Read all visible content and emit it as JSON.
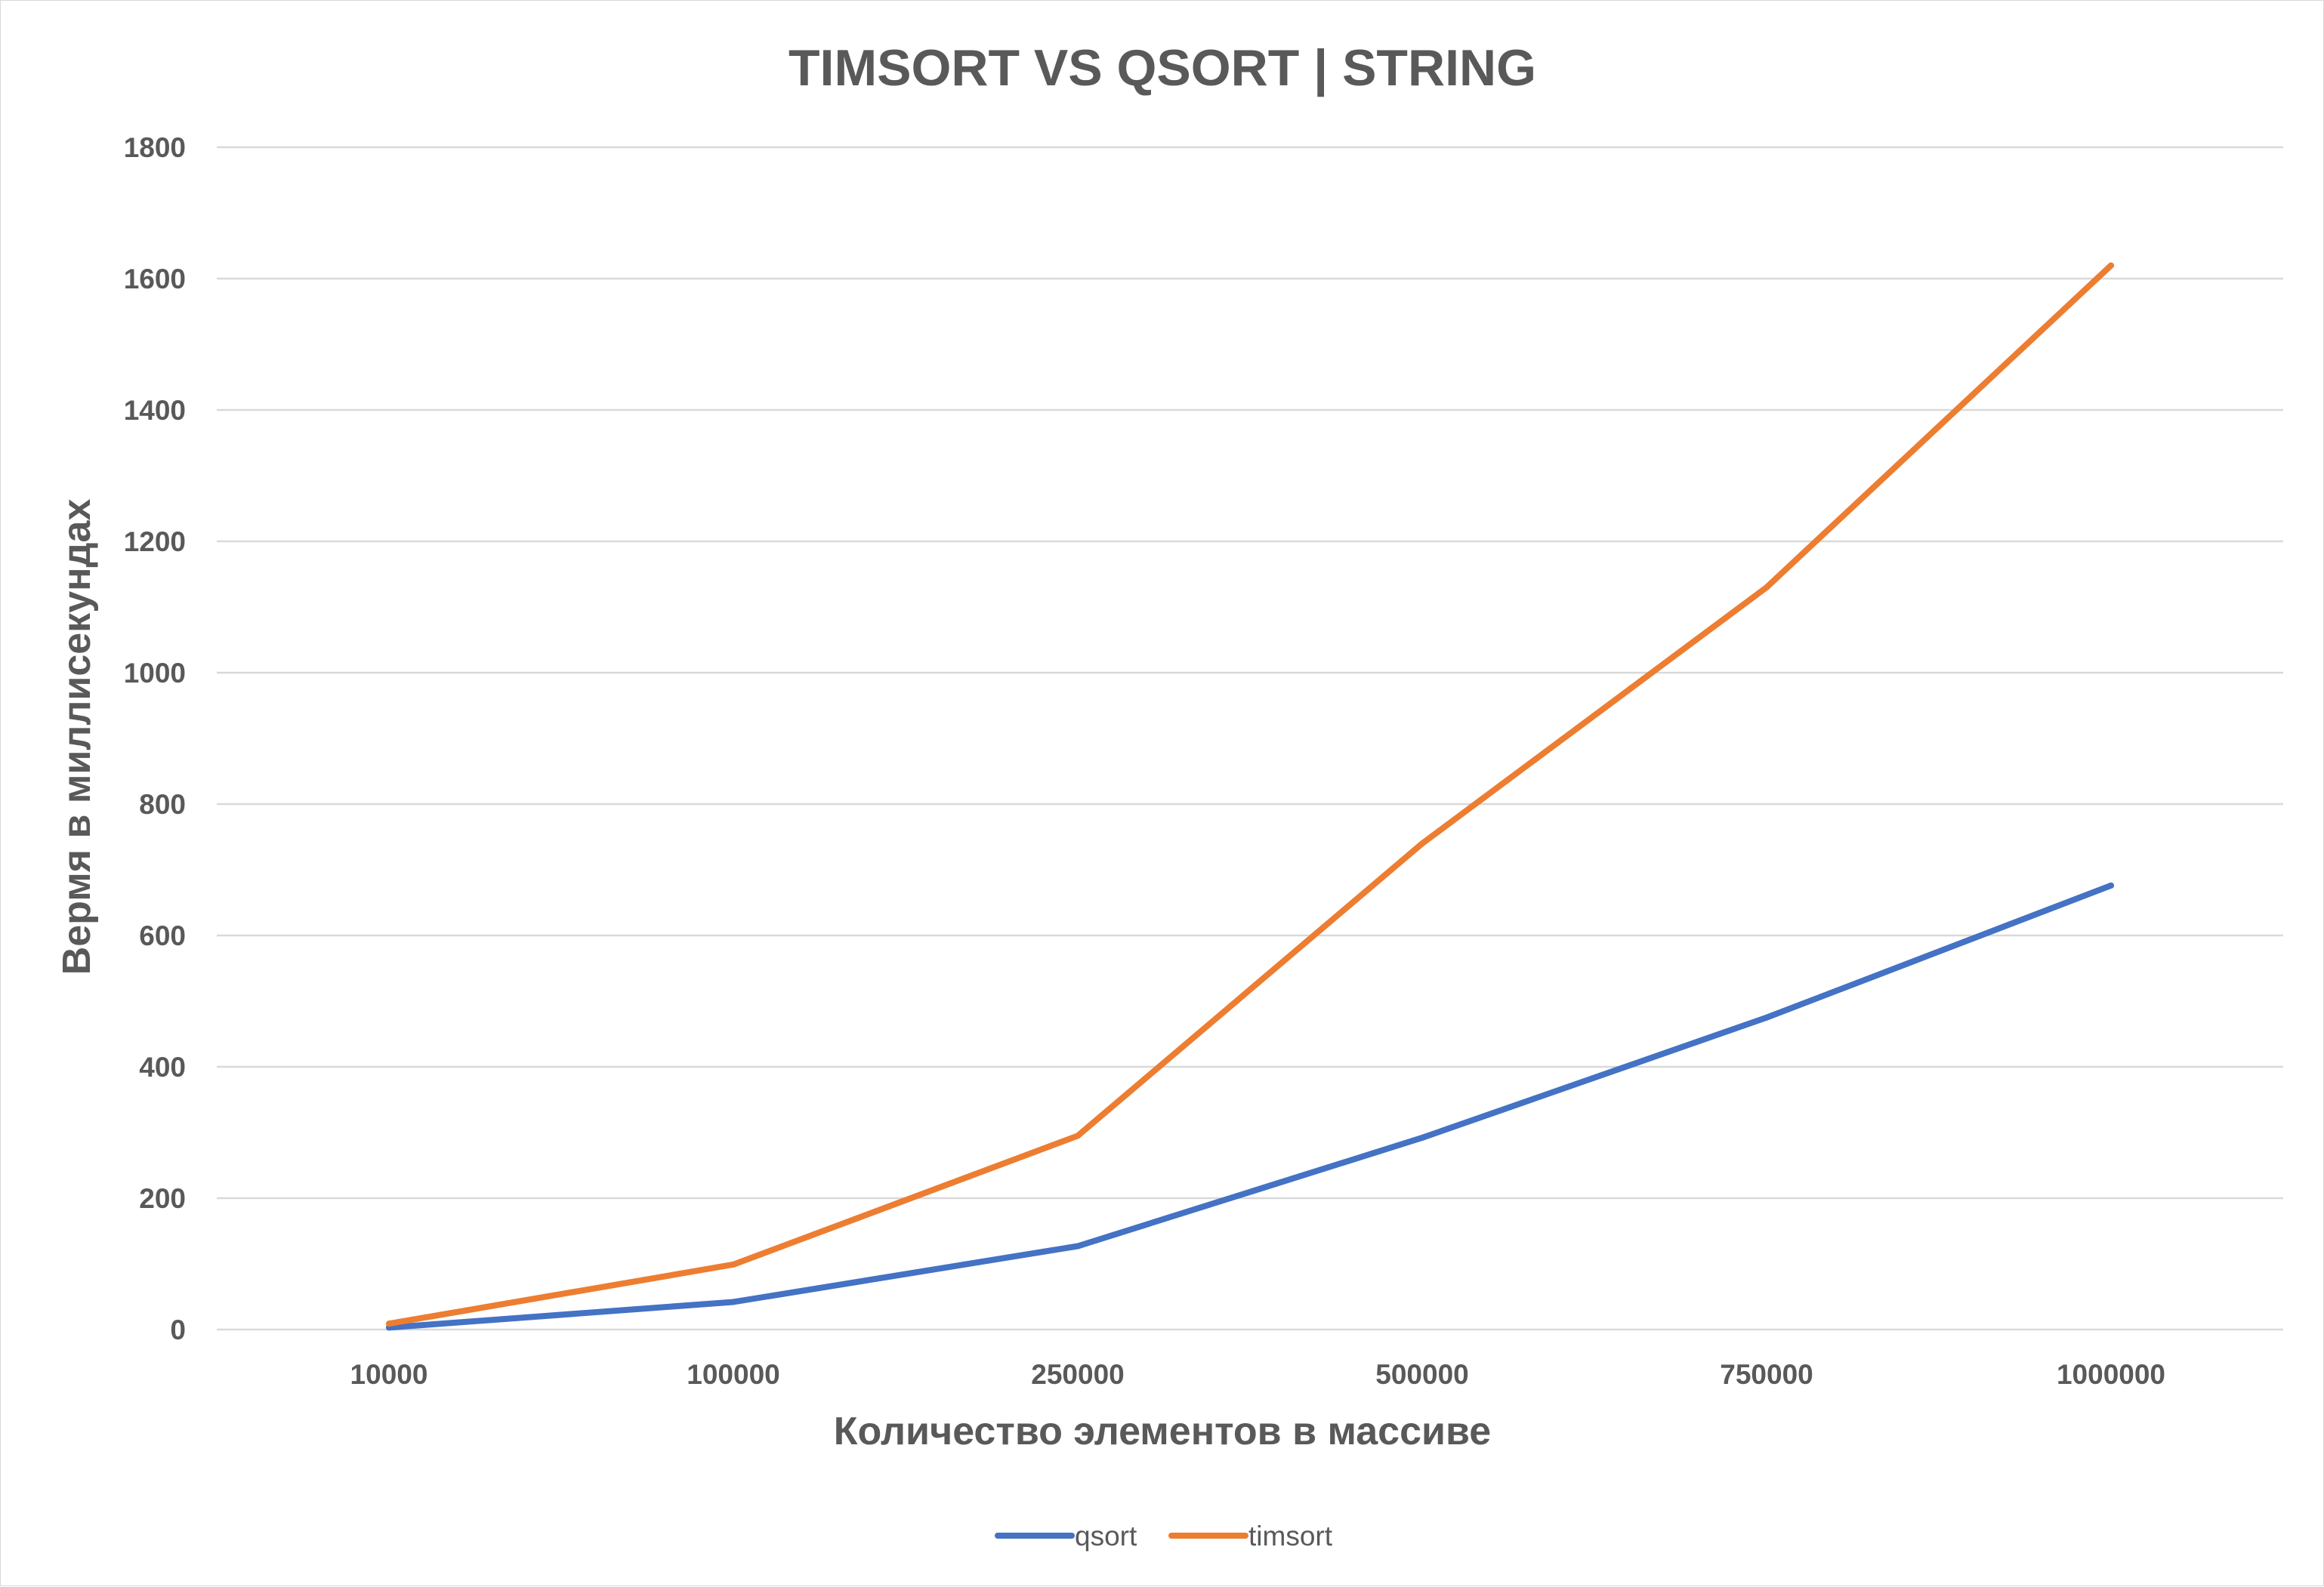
{
  "chart_data": {
    "type": "line",
    "title": "TIMSORT VS QSORT | STRING",
    "xlabel": "Количество элементов в массиве",
    "ylabel": "Вермя в миллисекундах",
    "categories": [
      "10000",
      "100000",
      "250000",
      "500000",
      "750000",
      "1000000"
    ],
    "ylim": [
      0,
      1800
    ],
    "yticks": [
      "0",
      "200",
      "400",
      "600",
      "800",
      "1000",
      "1200",
      "1400",
      "1600",
      "1800"
    ],
    "grid": true,
    "legend_position": "bottom",
    "series": [
      {
        "name": "qsort",
        "color": "#4472C4",
        "values": [
          3,
          42,
          127,
          292,
          475,
          676
        ]
      },
      {
        "name": "timsort",
        "color": "#ED7D31",
        "values": [
          9,
          99,
          295,
          740,
          1130,
          1620
        ]
      }
    ]
  }
}
